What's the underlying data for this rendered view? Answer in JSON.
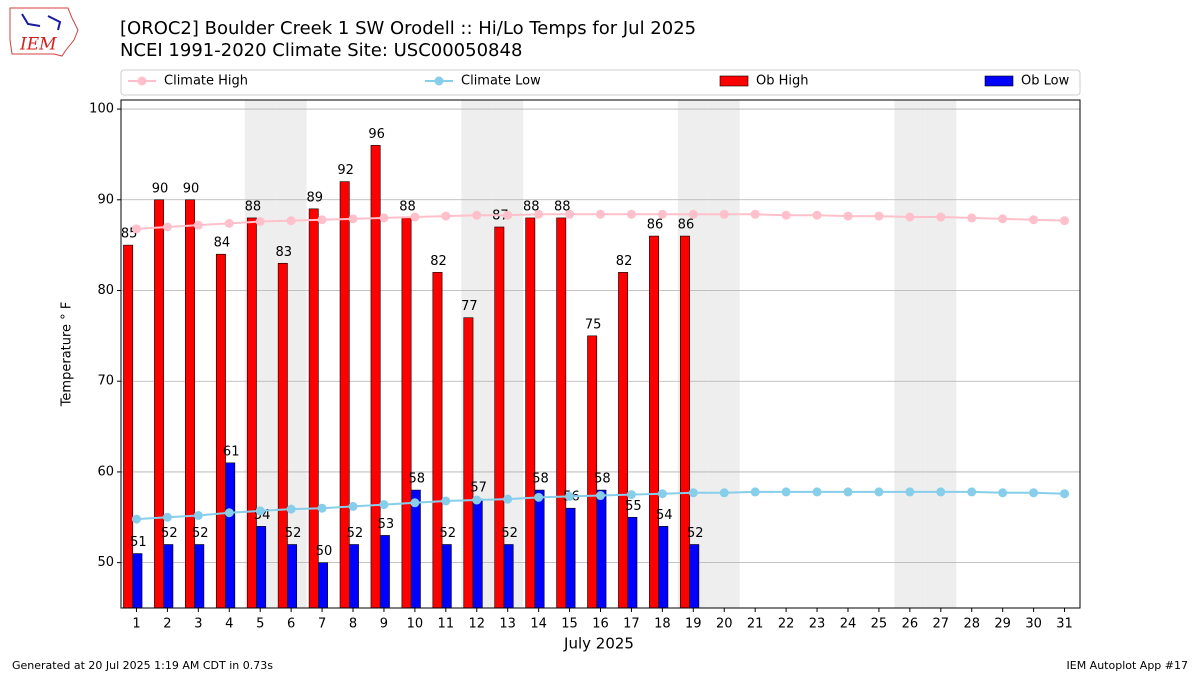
{
  "chart_data": {
    "type": "bar",
    "title": "[OROC2] Boulder Creek 1 SW Orodell :: Hi/Lo Temps for Jul 2025",
    "subtitle": "NCEI 1991-2020 Climate Site: USC00050848",
    "xlabel": "July 2025",
    "ylabel": "Temperature ° F",
    "logo": "IEM",
    "footer_left": "Generated at 20 Jul 2025 1:19 AM CDT in 0.73s",
    "footer_right": "IEM Autoplot App #17",
    "x": [
      1,
      2,
      3,
      4,
      5,
      6,
      7,
      8,
      9,
      10,
      11,
      12,
      13,
      14,
      15,
      16,
      17,
      18,
      19,
      20,
      21,
      22,
      23,
      24,
      25,
      26,
      27,
      28,
      29,
      30,
      31
    ],
    "xlim": [
      0.5,
      31.5
    ],
    "xticks": [
      1,
      2,
      3,
      4,
      5,
      6,
      7,
      8,
      9,
      10,
      11,
      12,
      13,
      14,
      15,
      16,
      17,
      18,
      19,
      20,
      21,
      22,
      23,
      24,
      25,
      26,
      27,
      28,
      29,
      30,
      31
    ],
    "ylim": [
      45,
      101
    ],
    "yticks": [
      50,
      60,
      70,
      80,
      90,
      100
    ],
    "grid": true,
    "legend": "top",
    "shaded_days": [
      5,
      6,
      12,
      13,
      19,
      20,
      26,
      27
    ],
    "shade_color": "#eeeeee",
    "series": [
      {
        "name": "Climate High",
        "type": "line",
        "color": "#ffc0cb",
        "values": [
          86.8,
          87.0,
          87.2,
          87.4,
          87.6,
          87.7,
          87.8,
          87.9,
          88.0,
          88.1,
          88.2,
          88.3,
          88.3,
          88.4,
          88.4,
          88.4,
          88.4,
          88.4,
          88.4,
          88.4,
          88.4,
          88.3,
          88.3,
          88.2,
          88.2,
          88.1,
          88.1,
          88.0,
          87.9,
          87.8,
          87.7
        ]
      },
      {
        "name": "Climate Low",
        "type": "line",
        "color": "#87ceeb",
        "values": [
          54.8,
          55.0,
          55.2,
          55.5,
          55.7,
          55.9,
          56.0,
          56.2,
          56.4,
          56.6,
          56.8,
          56.9,
          57.0,
          57.2,
          57.3,
          57.4,
          57.5,
          57.6,
          57.7,
          57.7,
          57.8,
          57.8,
          57.8,
          57.8,
          57.8,
          57.8,
          57.8,
          57.8,
          57.7,
          57.7,
          57.6
        ]
      },
      {
        "name": "Ob High",
        "type": "bar",
        "color": "#ff0000",
        "values": [
          85,
          90,
          90,
          84,
          88,
          83,
          89,
          92,
          96,
          88,
          82,
          77,
          87,
          88,
          88,
          75,
          82,
          86,
          86,
          null,
          null,
          null,
          null,
          null,
          null,
          null,
          null,
          null,
          null,
          null,
          null
        ]
      },
      {
        "name": "Ob Low",
        "type": "bar",
        "color": "#0000ff",
        "values": [
          51,
          52,
          52,
          61,
          54,
          52,
          50,
          52,
          53,
          58,
          52,
          57,
          52,
          58,
          56,
          58,
          55,
          54,
          52,
          null,
          null,
          null,
          null,
          null,
          null,
          null,
          null,
          null,
          null,
          null,
          null
        ]
      }
    ]
  }
}
